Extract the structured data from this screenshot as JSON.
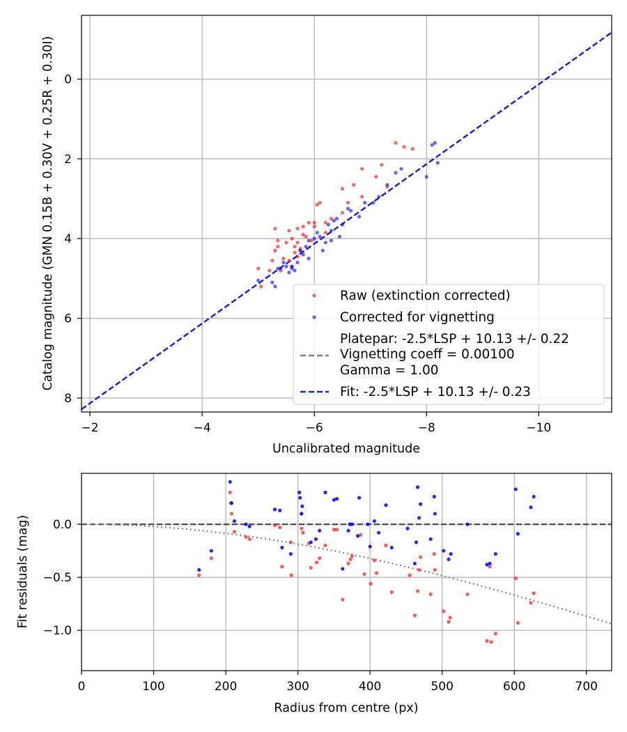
{
  "colors": {
    "raw": "#ff0000",
    "corrected": "#0000ff",
    "platepar": "#808080",
    "fit": "#2020d0",
    "grid": "#b0b0b0"
  },
  "chart_data": [
    {
      "type": "scatter",
      "title": "",
      "xlabel": "Uncalibrated magnitude",
      "ylabel": "Catalog magnitude (GMN 0.15B + 0.30V + 0.25R + 0.30I)",
      "xlim": [
        -1.85,
        -11.3
      ],
      "ylim": [
        8.35,
        -1.6
      ],
      "x_ticks": [
        -2,
        -4,
        -6,
        -8,
        -10
      ],
      "x_tick_labels": [
        "−2",
        "−4",
        "−6",
        "−8",
        "−10"
      ],
      "y_ticks": [
        0,
        2,
        4,
        6,
        8
      ],
      "y_tick_labels": [
        "0",
        "2",
        "4",
        "6",
        "8"
      ],
      "grid": true,
      "legend_position": "lower-right",
      "legend": [
        {
          "label": "Raw (extinction corrected)",
          "kind": "marker",
          "color": "#ff0000"
        },
        {
          "label": "Corrected for vignetting",
          "kind": "marker",
          "color": "#0000ff"
        },
        {
          "label": "Platepar: -2.5*LSP + 10.13 +/- 0.22\nVignetting coeff = 0.00100\nGamma = 1.00",
          "kind": "dashed-line",
          "color": "#808080"
        },
        {
          "label": "Fit: -2.5*LSP + 10.13 +/- 0.23",
          "kind": "dashed-line",
          "color": "#2020d0"
        }
      ],
      "lines": [
        {
          "name": "Platepar",
          "slope": 1.0,
          "intercept": 10.13,
          "x": [
            -1.85,
            -11.3
          ],
          "style": "dashed"
        },
        {
          "name": "Fit",
          "slope": 1.0,
          "intercept": 10.13,
          "x": [
            -1.85,
            -11.3
          ],
          "style": "dashed"
        }
      ],
      "series": [
        {
          "name": "Raw (extinction corrected)",
          "x": [
            -5.0,
            -5.05,
            -5.2,
            -5.25,
            -5.3,
            -5.35,
            -5.4,
            -5.45,
            -5.5,
            -5.55,
            -5.6,
            -5.65,
            -5.65,
            -5.7,
            -5.7,
            -5.75,
            -5.8,
            -5.85,
            -5.9,
            -5.95,
            -6.0,
            -6.05,
            -6.1,
            -6.2,
            -6.3,
            -6.5,
            -6.5,
            -6.6,
            -6.7,
            -6.85,
            -6.85,
            -7.1,
            -7.2,
            -7.3,
            -7.45,
            -7.6,
            -7.75,
            -5.3,
            -5.6,
            -5.75,
            -6.0,
            -6.2,
            -5.35,
            -5.55,
            -5.7,
            -5.8
          ],
          "y": [
            4.75,
            5.2,
            4.8,
            4.55,
            3.75,
            4.2,
            4.8,
            4.5,
            4.1,
            3.8,
            4.0,
            4.2,
            4.35,
            3.75,
            4.1,
            4.3,
            3.7,
            3.95,
            3.6,
            4.05,
            3.6,
            3.15,
            3.1,
            3.6,
            3.5,
            2.75,
            3.35,
            3.1,
            2.65,
            2.25,
            2.95,
            2.45,
            2.15,
            2.7,
            1.6,
            1.7,
            1.75,
            4.3,
            4.7,
            4.25,
            3.7,
            3.85,
            4.05,
            4.55,
            4.45,
            3.9
          ]
        },
        {
          "name": "Corrected for vignetting",
          "x": [
            -5.0,
            -5.25,
            -5.3,
            -5.4,
            -5.45,
            -5.5,
            -5.55,
            -5.6,
            -5.65,
            -5.7,
            -5.75,
            -5.8,
            -5.85,
            -5.9,
            -6.0,
            -6.05,
            -6.1,
            -6.15,
            -6.2,
            -6.25,
            -6.3,
            -6.35,
            -6.4,
            -6.45,
            -6.5,
            -6.6,
            -6.65,
            -6.8,
            -6.9,
            -7.05,
            -7.15,
            -7.3,
            -7.45,
            -7.55,
            -8.0,
            -8.1,
            -8.15,
            -8.2,
            -5.35,
            -5.6,
            -5.9,
            -6.3
          ],
          "y": [
            5.05,
            5.1,
            5.2,
            4.75,
            4.6,
            4.7,
            4.85,
            4.7,
            4.8,
            4.6,
            4.3,
            4.4,
            4.2,
            4.05,
            4.0,
            3.85,
            3.95,
            4.3,
            4.1,
            3.65,
            3.8,
            3.55,
            3.5,
            3.95,
            3.65,
            3.25,
            3.3,
            3.45,
            3.1,
            3.1,
            2.95,
            2.65,
            2.35,
            2.25,
            2.45,
            1.65,
            1.6,
            2.1,
            4.75,
            4.75,
            4.5,
            4.05
          ]
        }
      ]
    },
    {
      "type": "scatter",
      "title": "",
      "xlabel": "Radius from centre (px)",
      "ylabel": "Fit residuals (mag)",
      "xlim": [
        0,
        735
      ],
      "ylim": [
        -1.38,
        0.48
      ],
      "x_ticks": [
        0,
        100,
        200,
        300,
        400,
        500,
        600,
        700
      ],
      "x_tick_labels": [
        "0",
        "100",
        "200",
        "300",
        "400",
        "500",
        "600",
        "700"
      ],
      "y_ticks": [
        0.0,
        -0.5,
        -1.0
      ],
      "y_tick_labels": [
        "0.0",
        "−0.5",
        "−1.0"
      ],
      "grid": true,
      "lines": [
        {
          "name": "Zero",
          "y": 0.0,
          "style": "dashed",
          "color": "#505050"
        },
        {
          "name": "Vignetting curve",
          "style": "dotted",
          "color": "#808080",
          "coeff": 0.001
        }
      ],
      "series": [
        {
          "name": "Raw residuals",
          "x": [
            163,
            180,
            206,
            207,
            208,
            212,
            228,
            233,
            268,
            275,
            278,
            290,
            291,
            305,
            305,
            307,
            315,
            318,
            326,
            330,
            338,
            350,
            354,
            362,
            370,
            373,
            375,
            387,
            392,
            401,
            406,
            409,
            422,
            430,
            455,
            462,
            466,
            468,
            470,
            484,
            489,
            490,
            502,
            509,
            511,
            535,
            562,
            568,
            566,
            574,
            602,
            605,
            623,
            627
          ],
          "y": [
            -0.48,
            -0.32,
            0.3,
            0.2,
            0.1,
            -0.07,
            -0.12,
            -0.14,
            -0.01,
            -0.03,
            -0.4,
            -0.17,
            -0.48,
            0.1,
            -0.04,
            -0.08,
            -0.18,
            -0.41,
            -0.36,
            -0.32,
            -0.2,
            -0.05,
            -0.05,
            -0.71,
            -0.37,
            -0.33,
            -0.3,
            -0.1,
            -0.47,
            -0.56,
            -0.34,
            -0.46,
            -0.2,
            -0.64,
            -0.48,
            -0.86,
            -0.63,
            -0.43,
            -0.31,
            -0.66,
            -0.28,
            -0.43,
            -0.82,
            -0.92,
            -0.88,
            -0.66,
            -1.1,
            -1.11,
            -0.4,
            -1.03,
            -0.51,
            -0.93,
            -0.74,
            -0.65
          ]
        },
        {
          "name": "Corrected residuals",
          "x": [
            163,
            180,
            206,
            208,
            212,
            228,
            233,
            268,
            275,
            278,
            290,
            302,
            303,
            305,
            306,
            318,
            325,
            330,
            338,
            350,
            354,
            362,
            370,
            372,
            375,
            383,
            385,
            397,
            400,
            406,
            412,
            422,
            430,
            452,
            462,
            464,
            466,
            468,
            470,
            484,
            489,
            490,
            502,
            509,
            512,
            535,
            562,
            566,
            574,
            602,
            605,
            623,
            627
          ],
          "y": [
            -0.43,
            -0.25,
            0.4,
            0.2,
            0.03,
            0.0,
            -0.02,
            0.14,
            0.13,
            -0.22,
            -0.28,
            0.3,
            0.25,
            0.1,
            0.17,
            -0.17,
            -0.14,
            -0.06,
            0.3,
            0.23,
            0.24,
            -0.42,
            -0.06,
            0.0,
            0.0,
            -0.11,
            0.25,
            0.0,
            -0.21,
            0.03,
            -0.08,
            0.18,
            -0.22,
            -0.04,
            -0.37,
            -0.17,
            0.35,
            0.06,
            0.19,
            -0.14,
            0.26,
            0.1,
            -0.25,
            -0.33,
            -0.28,
            0.0,
            -0.38,
            -0.37,
            -0.28,
            0.33,
            -0.09,
            0.16,
            0.26
          ]
        }
      ]
    }
  ]
}
